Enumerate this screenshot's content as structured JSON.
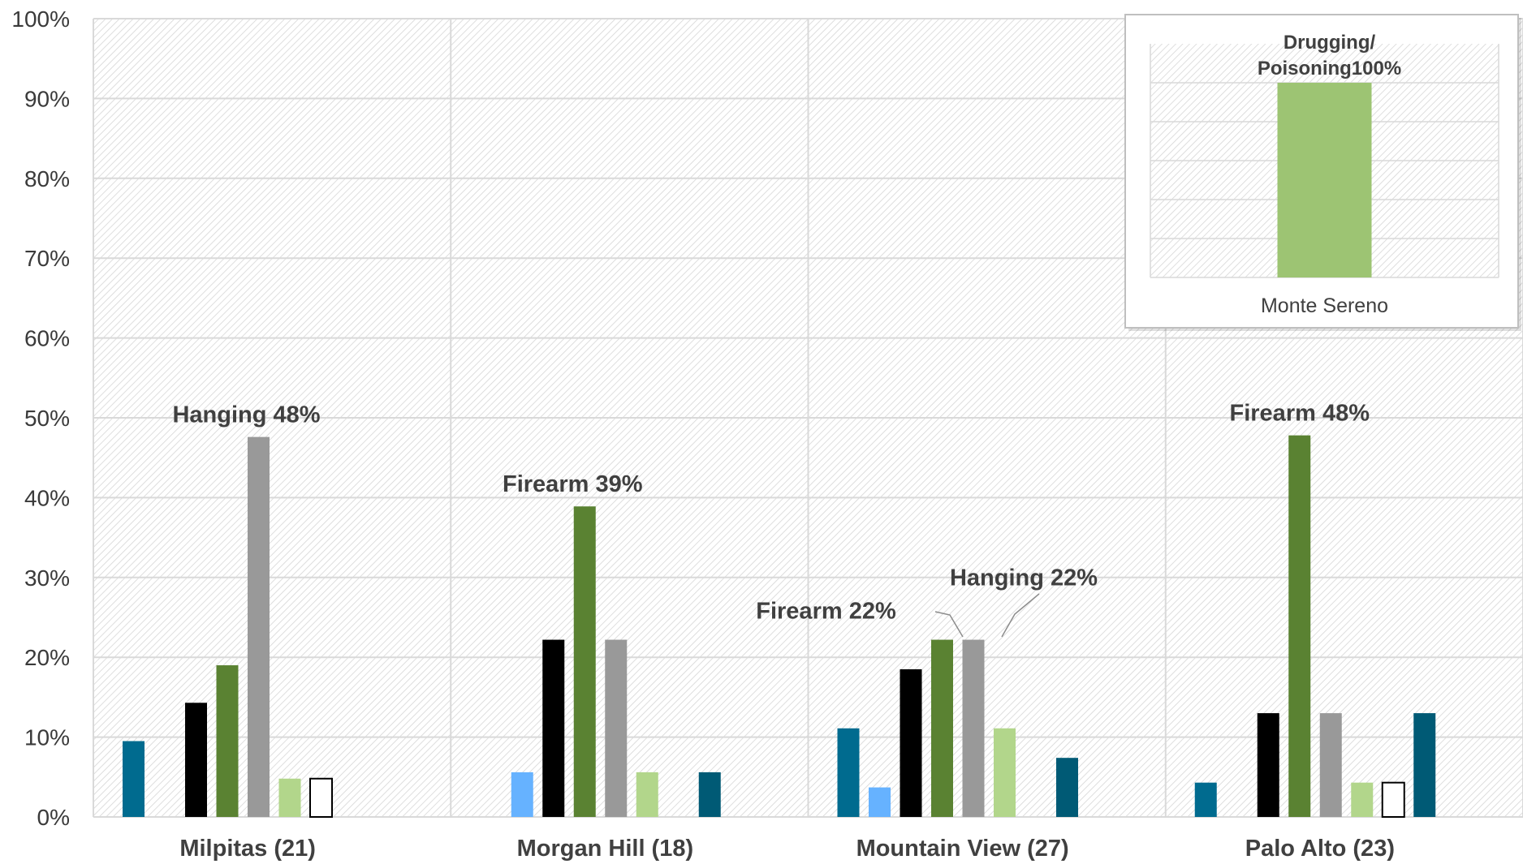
{
  "chart_data": [
    {
      "type": "bar",
      "ylim": [
        0,
        100
      ],
      "yticks": [
        0,
        10,
        20,
        30,
        40,
        50,
        60,
        70,
        80,
        90,
        100
      ],
      "ytick_labels": [
        "0%",
        "10%",
        "20%",
        "30%",
        "40%",
        "50%",
        "60%",
        "70%",
        "80%",
        "90%",
        "100%"
      ],
      "grid": true,
      "categories": [
        "Milpitas (21)",
        "Morgan Hill (18)",
        "Mountain View (27)",
        "Palo Alto (23)"
      ],
      "series": [
        {
          "color": "#006b8f",
          "values": [
            9.5,
            0,
            11.1,
            4.3
          ]
        },
        {
          "color": "#66b2ff",
          "values": [
            0,
            5.6,
            3.7,
            0
          ]
        },
        {
          "color": "#000000",
          "values": [
            14.3,
            22.2,
            18.5,
            13.0
          ]
        },
        {
          "color": "#5a8232",
          "values": [
            19.0,
            38.9,
            22.2,
            47.8
          ]
        },
        {
          "color": "#999999",
          "values": [
            47.6,
            22.2,
            22.2,
            13.0
          ]
        },
        {
          "color": "#b2d68b",
          "values": [
            4.8,
            5.6,
            11.1,
            4.3
          ]
        },
        {
          "color": "#ffffff",
          "outline": "#000000",
          "values": [
            4.8,
            0,
            0,
            4.3
          ]
        },
        {
          "color": "#005a75",
          "values": [
            0,
            5.6,
            7.4,
            13.0
          ]
        }
      ],
      "annotations": [
        {
          "text": "Hanging 48%",
          "category": 0,
          "series": 4
        },
        {
          "text": "Firearm 39%",
          "category": 1,
          "series": 3
        },
        {
          "text": "Firearm 22%",
          "category": 2,
          "series": 3
        },
        {
          "text": "Hanging 22%",
          "category": 2,
          "series": 4
        },
        {
          "text": "Firearm 48%",
          "category": 3,
          "series": 3
        }
      ]
    },
    {
      "type": "bar",
      "ylim": [
        0,
        100
      ],
      "categories": [
        "Monte Sereno"
      ],
      "values": [
        100
      ],
      "color": "#9dc473",
      "annotation_lines": [
        "Drugging/",
        "Poisoning100%"
      ]
    }
  ]
}
